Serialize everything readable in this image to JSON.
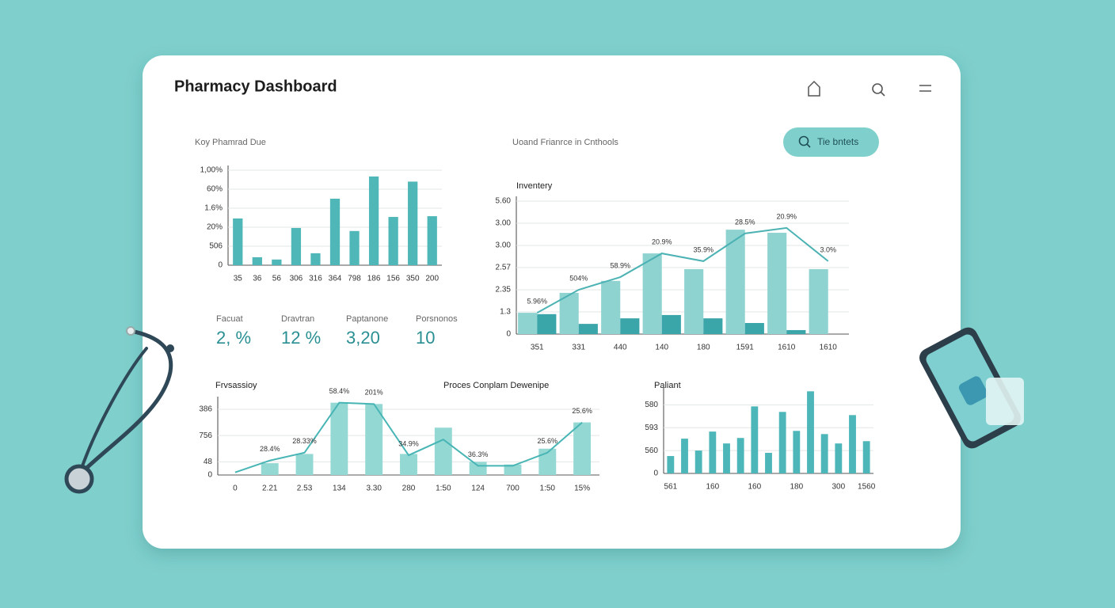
{
  "header": {
    "title": "Pharmacy Dashboard"
  },
  "button": {
    "label": "Tie bntets"
  },
  "kpis": [
    {
      "label": "Facuat",
      "value": "2, %"
    },
    {
      "label": "Dravtran",
      "value": "12 %"
    },
    {
      "label": "Paptanone",
      "value": "3,20"
    },
    {
      "label": "Porsnonos",
      "value": "10"
    }
  ],
  "chart_data": [
    {
      "type": "bar",
      "title": "Koy Phamrad Due",
      "categories": [
        "35",
        "36",
        "56",
        "306",
        "316",
        "364",
        "798",
        "186",
        "156",
        "350",
        "200"
      ],
      "series": [
        {
          "name": null,
          "type": "bar",
          "color": "#4fb7b8",
          "values": [
            2.46,
            0.42,
            0.3,
            1.96,
            0.63,
            3.5,
            1.8,
            4.67,
            2.54,
            4.4,
            2.58
          ]
        }
      ],
      "ylim": [
        0,
        5
      ],
      "yticks": [
        0,
        {
          "value": 1,
          "label": "506"
        },
        {
          "value": 2,
          "label": "20%"
        },
        {
          "value": 3,
          "label": "1.6%"
        },
        {
          "value": 4,
          "label": "60%"
        },
        {
          "value": 5,
          "label": "1,00%"
        }
      ],
      "grid": true
    },
    {
      "type": "combo",
      "title": "Uoand Frianrce in Cnthools",
      "subtitle": "Inventery",
      "categories": [
        "351",
        "331",
        "440",
        "140",
        "180",
        "1591",
        "1610",
        "1610"
      ],
      "series": [
        {
          "name": null,
          "type": "bar",
          "color": "#8fd3d1",
          "values": [
            0.96,
            1.86,
            2.4,
            3.64,
            2.93,
            4.71,
            4.57,
            2.93
          ]
        },
        {
          "name": null,
          "type": "bar",
          "color": "#3ba6a9",
          "values": [
            0.9,
            0.46,
            0.71,
            0.86,
            0.71,
            0.5,
            0.18,
            null
          ]
        },
        {
          "name": null,
          "type": "line",
          "color": "#4cb2b3",
          "values": [
            0.96,
            2.0,
            2.57,
            3.64,
            3.29,
            4.54,
            4.79,
            3.29
          ],
          "annotations": [
            "5.96%",
            "504%",
            "58.9%",
            "20.9%",
            "35.9%",
            "28.5%",
            "20.9%",
            "3.0%"
          ]
        }
      ],
      "ylim": [
        0,
        6
      ],
      "yticks": [
        0,
        {
          "value": 1,
          "label": "1.3"
        },
        {
          "value": 2,
          "label": "2.35"
        },
        {
          "value": 3,
          "label": "2.57"
        },
        {
          "value": 4,
          "label": "3.00"
        },
        {
          "value": 5,
          "label": "3.00"
        },
        {
          "value": 6,
          "label": "5.60"
        }
      ],
      "grid": true
    },
    {
      "type": "combo",
      "title": "Frvsassioy",
      "subtitle": "Proces Conplam Dewenipe",
      "categories": [
        "0",
        "2.21",
        "2.53",
        "134",
        "3.30",
        "280",
        "1:50",
        "124",
        "700",
        "1:50",
        "15%"
      ],
      "series": [
        {
          "name": null,
          "type": "bar",
          "color": "#94d8d4",
          "values": [
            null,
            0.9,
            1.6,
            5.5,
            5.4,
            1.6,
            3.6,
            1.0,
            0.8,
            2.0,
            4.0
          ]
        },
        {
          "name": null,
          "type": "line",
          "color": "#48b5b5",
          "values": [
            0.2,
            1.1,
            1.7,
            5.5,
            5.4,
            1.5,
            2.7,
            0.7,
            0.7,
            1.7,
            4.0
          ],
          "annotations": [
            null,
            "28.4%",
            "28.33%",
            "58.4%",
            "201%",
            "34.9%",
            null,
            "36.3%",
            null,
            "25.6%",
            "25.6%"
          ]
        }
      ],
      "ylim": [
        0,
        5.6
      ],
      "yticks": [
        0,
        {
          "value": 1,
          "label": "48"
        },
        {
          "value": 3,
          "label": "756"
        },
        {
          "value": 5,
          "label": "386"
        }
      ],
      "grid": true
    },
    {
      "type": "bar",
      "title": "Paliant",
      "categories": [
        "561",
        null,
        null,
        "160",
        null,
        null,
        "160",
        null,
        null,
        "180",
        null,
        null,
        "300",
        null,
        "1560"
      ],
      "series": [
        {
          "name": null,
          "type": "bar",
          "color": "#4cb6b8",
          "values": [
            0.76,
            1.52,
            1.0,
            1.83,
            1.31,
            1.55,
            2.93,
            0.9,
            2.69,
            1.86,
            3.59,
            1.72,
            1.31,
            2.55,
            1.41
          ]
        }
      ],
      "ylim": [
        0,
        3.6
      ],
      "yticks": [
        0,
        {
          "value": 1,
          "label": "560"
        },
        {
          "value": 2,
          "label": "593"
        },
        {
          "value": 3,
          "label": "580"
        }
      ],
      "grid": true
    }
  ]
}
